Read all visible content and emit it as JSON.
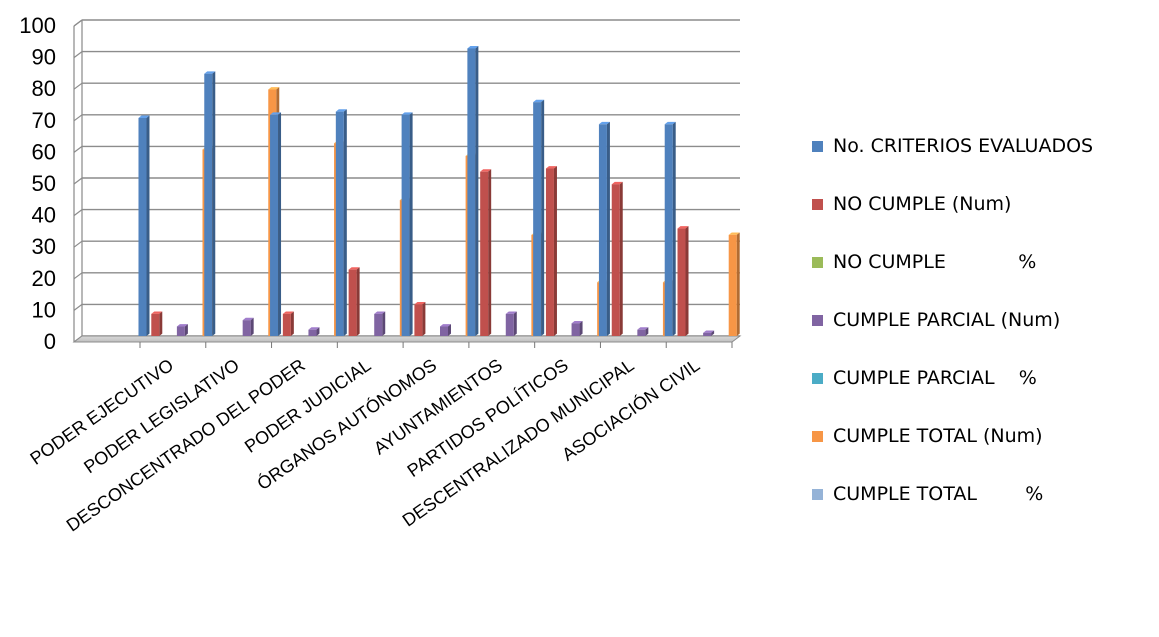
{
  "chart_data": {
    "type": "bar",
    "categories": [
      "PODER EJECUTIVO",
      "PODER LEGISLATIVO",
      "DESCONCENTRADO DEL PODER",
      "PODER JUDICIAL",
      "ÓRGANOS AUTÓNOMOS",
      "AYUNTAMIENTOS",
      "PARTIDOS POLÍTICOS",
      "DESCENTRALIZADO MUNICIPAL",
      "ASOCIACIÓN CIVIL"
    ],
    "series": [
      {
        "name": "No. CRITERIOS EVALUADOS",
        "color": "#4f81bd",
        "values": [
          69,
          83,
          70,
          71,
          70,
          91,
          74,
          67,
          67
        ]
      },
      {
        "name": "NO CUMPLE (Num)",
        "color": "#c0504d",
        "values": [
          7,
          0,
          7,
          21,
          10,
          52,
          53,
          48,
          34
        ]
      },
      {
        "name": "NO CUMPLE            %",
        "color": "#9bbb59",
        "values": [
          0,
          0,
          0,
          0,
          0,
          0,
          0,
          0,
          0
        ]
      },
      {
        "name": "CUMPLE PARCIAL (Num)",
        "color": "#8064a2",
        "values": [
          3,
          5,
          2,
          7,
          3,
          7,
          4,
          2,
          1
        ]
      },
      {
        "name": "CUMPLE PARCIAL    %",
        "color": "#4bacc6",
        "values": [
          0,
          0,
          0,
          0,
          0,
          0,
          0,
          0,
          0
        ]
      },
      {
        "name": "CUMPLE TOTAL (Num)",
        "color": "#f79646",
        "values": [
          59,
          78,
          61,
          43,
          57,
          32,
          17,
          17,
          32
        ]
      },
      {
        "name": "CUMPLE TOTAL        %",
        "color": "#95b3d7",
        "values": [
          0,
          0,
          0,
          0,
          0,
          0,
          0,
          0,
          0
        ]
      }
    ],
    "title": "",
    "xlabel": "",
    "ylabel": "",
    "ylim": [
      0,
      100
    ],
    "y_ticks": [
      0,
      10,
      20,
      30,
      40,
      50,
      60,
      70,
      80,
      90,
      100
    ],
    "grid": true,
    "legend_position": "right"
  }
}
